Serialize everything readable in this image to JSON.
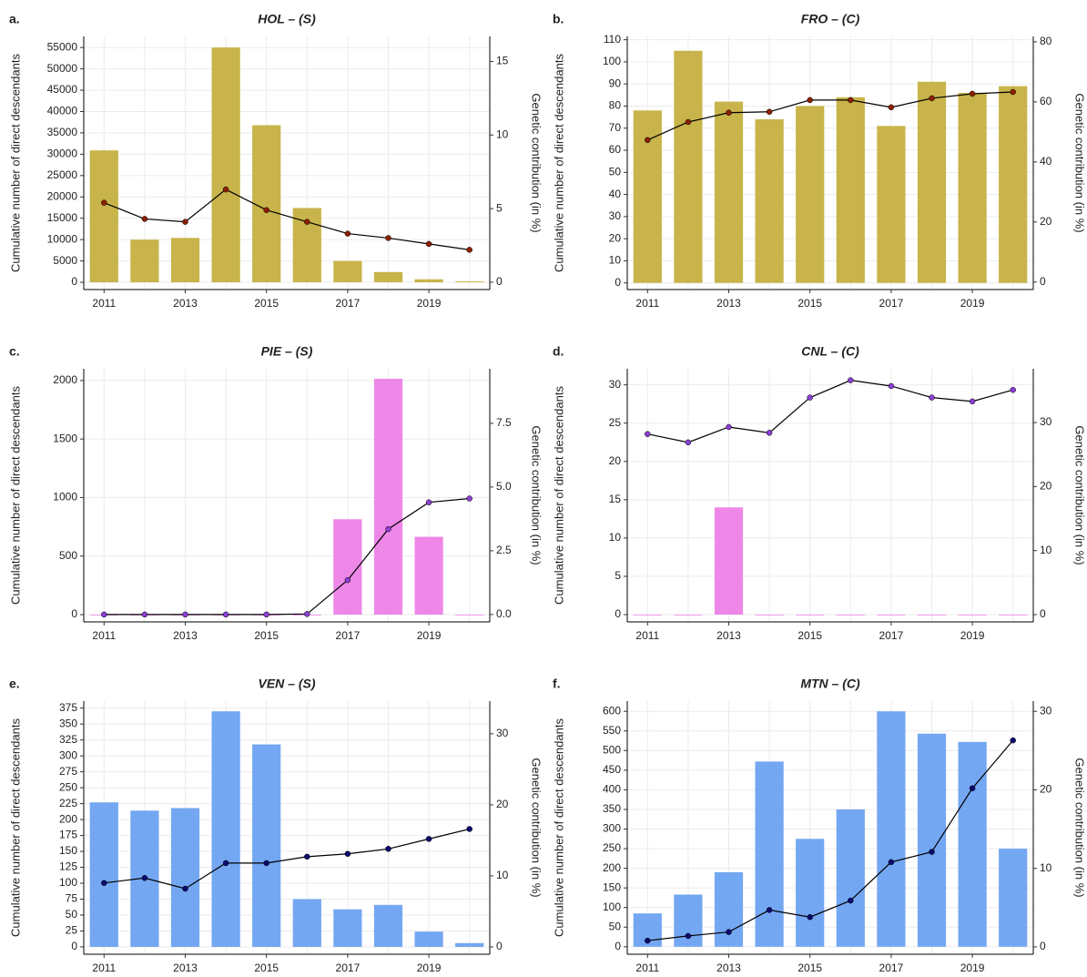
{
  "chart_data": [
    {
      "type": "bar",
      "panel_label": "a.",
      "title": "HOL – (S)",
      "y_label": "Cumulative number of direct descendants",
      "y2_label": "Genetic contribution (in %)",
      "x": [
        2011,
        2012,
        2013,
        2014,
        2015,
        2016,
        2017,
        2018,
        2019,
        2020
      ],
      "xlim": [
        2010.5,
        2020.5
      ],
      "xticks": [
        2011,
        2013,
        2015,
        2017,
        2019
      ],
      "ylim": [
        -1700,
        57600
      ],
      "yticks": [
        0,
        5000,
        10000,
        15000,
        20000,
        25000,
        30000,
        35000,
        40000,
        45000,
        50000,
        55000
      ],
      "y2lim": [
        -0.5,
        16.7
      ],
      "y2ticks": [
        0,
        5,
        10,
        15
      ],
      "grid": true,
      "line_color": "#000000",
      "series": [
        {
          "mark": "bar",
          "color": "#c8b44a",
          "values": [
            30900,
            10000,
            10400,
            55000,
            36800,
            17400,
            5000,
            2400,
            700,
            200
          ]
        },
        {
          "mark": "line",
          "axis": "y2",
          "color": "#8b2000",
          "values": [
            5.4,
            4.3,
            4.1,
            6.3,
            4.9,
            4.1,
            3.3,
            3.0,
            2.6,
            2.2
          ]
        }
      ]
    },
    {
      "type": "bar",
      "panel_label": "b.",
      "title": "FRO – (C)",
      "y_label": "Cumulative number of direct descendants",
      "y2_label": "Genetic contribution (in %)",
      "x": [
        2011,
        2012,
        2013,
        2014,
        2015,
        2016,
        2017,
        2018,
        2019,
        2020
      ],
      "xlim": [
        2010.5,
        2020.5
      ],
      "xticks": [
        2011,
        2013,
        2015,
        2017,
        2019
      ],
      "ylim": [
        -3,
        111.5
      ],
      "yticks": [
        0,
        10,
        20,
        30,
        40,
        50,
        60,
        70,
        80,
        90,
        100,
        110
      ],
      "y2lim": [
        -2.5,
        81.8
      ],
      "y2ticks": [
        0,
        20,
        40,
        60,
        80
      ],
      "grid": true,
      "line_color": "#000000",
      "series": [
        {
          "mark": "bar",
          "color": "#c8b44a",
          "values": [
            78,
            105,
            82,
            74,
            80,
            84,
            71,
            91,
            86,
            89
          ]
        },
        {
          "mark": "line",
          "axis": "y2",
          "color": "#8b2000",
          "values": [
            47.3,
            53.3,
            56.4,
            56.7,
            60.6,
            60.6,
            58.2,
            61.2,
            62.7,
            63.3
          ]
        }
      ]
    },
    {
      "type": "bar",
      "panel_label": "c.",
      "title": "PIE – (S)",
      "y_label": "Cumulative number of direct descendants",
      "y2_label": "Genetic contribution (in %)",
      "x": [
        2011,
        2012,
        2013,
        2014,
        2015,
        2016,
        2017,
        2018,
        2019,
        2020
      ],
      "xlim": [
        2010.5,
        2020.5
      ],
      "xticks": [
        2011,
        2013,
        2015,
        2017,
        2019
      ],
      "ylim": [
        -62,
        2100
      ],
      "yticks": [
        0,
        500,
        1000,
        1500,
        2000
      ],
      "y2lim": [
        -0.29,
        9.64
      ],
      "y2ticks": [
        {
          "value": 0,
          "label": "0.0"
        },
        2.5,
        {
          "value": 5,
          "label": "5.0"
        },
        7.5
      ],
      "grid": true,
      "line_color": "#000000",
      "series": [
        {
          "mark": "bar",
          "color": "#ee88e8",
          "values": [
            0,
            0,
            0,
            0,
            0,
            0,
            815,
            2015,
            665,
            0
          ]
        },
        {
          "mark": "line",
          "axis": "y2",
          "color": "#8a3fd1",
          "values": [
            0,
            0,
            0,
            0,
            0,
            0.02,
            1.35,
            3.35,
            4.4,
            4.55
          ]
        }
      ]
    },
    {
      "type": "bar",
      "panel_label": "d.",
      "title": "CNL – (C)",
      "y_label": "Cumulative number of direct descendants",
      "y2_label": "Genetic contribution (in %)",
      "x": [
        2011,
        2012,
        2013,
        2014,
        2015,
        2016,
        2017,
        2018,
        2019,
        2020
      ],
      "xlim": [
        2010.5,
        2020.5
      ],
      "xticks": [
        2011,
        2013,
        2015,
        2017,
        2019
      ],
      "ylim": [
        -0.95,
        32.1
      ],
      "yticks": [
        0,
        5,
        10,
        15,
        20,
        25,
        30
      ],
      "y2lim": [
        -1.14,
        38.4
      ],
      "y2ticks": [
        0,
        10,
        20,
        30
      ],
      "grid": true,
      "line_color": "#000000",
      "series": [
        {
          "mark": "bar",
          "color": "#ee88e8",
          "values": [
            0,
            0,
            14,
            0,
            0,
            0,
            0,
            0,
            0,
            0
          ]
        },
        {
          "mark": "line",
          "axis": "y2",
          "color": "#8a3fd1",
          "values": [
            28.2,
            26.9,
            29.3,
            28.4,
            33.9,
            36.6,
            35.7,
            33.9,
            33.3,
            35.1
          ]
        }
      ]
    },
    {
      "type": "bar",
      "panel_label": "e.",
      "title": "VEN – (S)",
      "y_label": "Cumulative number of direct descendants",
      "y2_label": "Genetic contribution (in %)",
      "x": [
        2011,
        2012,
        2013,
        2014,
        2015,
        2016,
        2017,
        2018,
        2019,
        2020
      ],
      "xlim": [
        2010.5,
        2020.5
      ],
      "xticks": [
        2011,
        2013,
        2015,
        2017,
        2019
      ],
      "ylim": [
        -11.5,
        386
      ],
      "yticks": [
        0,
        25,
        50,
        75,
        100,
        125,
        150,
        175,
        200,
        225,
        250,
        275,
        300,
        325,
        350,
        375
      ],
      "y2lim": [
        -1.03,
        34.6
      ],
      "y2ticks": [
        0,
        10,
        20,
        30
      ],
      "grid": true,
      "line_color": "#000000",
      "series": [
        {
          "mark": "bar",
          "color": "#74a7f2",
          "values": [
            227,
            214,
            218,
            370,
            318,
            75,
            59,
            66,
            24,
            6
          ]
        },
        {
          "mark": "line",
          "axis": "y2",
          "color": "#0a0a6e",
          "values": [
            9.0,
            9.7,
            8.2,
            11.8,
            11.8,
            12.7,
            13.1,
            13.8,
            15.2,
            16.6
          ]
        }
      ]
    },
    {
      "type": "bar",
      "panel_label": "f.",
      "title": "MTN – (C)",
      "y_label": "Cumulative number of direct descendants",
      "y2_label": "Genetic contribution (in %)",
      "x": [
        2011,
        2012,
        2013,
        2014,
        2015,
        2016,
        2017,
        2018,
        2019,
        2020
      ],
      "xlim": [
        2010.5,
        2020.5
      ],
      "xticks": [
        2011,
        2013,
        2015,
        2017,
        2019
      ],
      "ylim": [
        -19,
        626
      ],
      "yticks": [
        0,
        50,
        100,
        150,
        200,
        250,
        300,
        350,
        400,
        450,
        500,
        550,
        600
      ],
      "y2lim": [
        -0.93,
        31.3
      ],
      "y2ticks": [
        0,
        10,
        20,
        30
      ],
      "grid": true,
      "line_color": "#000000",
      "series": [
        {
          "mark": "bar",
          "color": "#74a7f2",
          "values": [
            85,
            133,
            190,
            472,
            275,
            350,
            600,
            543,
            522,
            250
          ]
        },
        {
          "mark": "line",
          "axis": "y2",
          "color": "#0a0a6e",
          "values": [
            0.8,
            1.4,
            1.9,
            4.7,
            3.8,
            5.9,
            10.8,
            12.1,
            20.2,
            26.3
          ]
        }
      ]
    }
  ]
}
